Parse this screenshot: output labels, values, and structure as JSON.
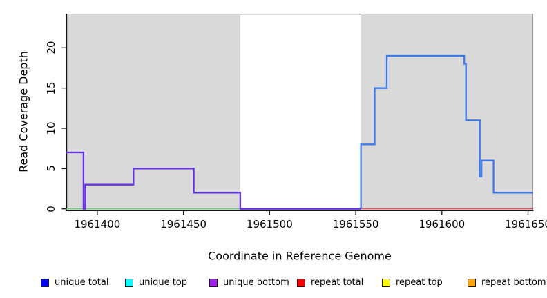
{
  "chart_data": {
    "type": "line",
    "subtype": "step-coverage",
    "title": "",
    "xlabel": "Coordinate in Reference Genome",
    "ylabel": "Read Coverage Depth",
    "xlim": [
      1961382,
      1961653
    ],
    "ylim": [
      0,
      24.2
    ],
    "grid": false,
    "x_ticks": {
      "values": [
        1961400,
        1961450,
        1961500,
        1961550,
        1961600,
        1961650
      ],
      "labels": [
        "1961400",
        "1961450",
        "1961500",
        "1961550",
        "1961600",
        "1961650"
      ]
    },
    "y_ticks": {
      "values": [
        0,
        5,
        10,
        15,
        20
      ],
      "labels": [
        "0",
        "5",
        "10",
        "15",
        "20"
      ]
    },
    "repeat_regions": [
      {
        "start": 1961382,
        "end": 1961483
      },
      {
        "start": 1961553,
        "end": 1961653
      }
    ],
    "region_color": "#d9d9d9",
    "series": [
      {
        "name": "zero-baseline-left-green",
        "color": "#72c17c",
        "width": 1.6,
        "points": [
          [
            1961382,
            0
          ],
          [
            1961483,
            0
          ]
        ]
      },
      {
        "name": "zero-baseline-right-red",
        "color": "#e25568",
        "width": 1.6,
        "points": [
          [
            1961553,
            0
          ],
          [
            1961653,
            0
          ]
        ]
      },
      {
        "name": "unique-coverage-left",
        "color": "#6333df",
        "width": 2.3,
        "points": [
          [
            1961382,
            7
          ],
          [
            1961392,
            7
          ],
          [
            1961392,
            0
          ],
          [
            1961393,
            0
          ],
          [
            1961393,
            3
          ],
          [
            1961421,
            3
          ],
          [
            1961421,
            5
          ],
          [
            1961456,
            5
          ],
          [
            1961456,
            2
          ],
          [
            1961483,
            2
          ],
          [
            1961483,
            0
          ],
          [
            1961553,
            0
          ]
        ]
      },
      {
        "name": "unique-coverage-right",
        "color": "#3e79e9",
        "width": 2.3,
        "points": [
          [
            1961553,
            0
          ],
          [
            1961553,
            8
          ],
          [
            1961561,
            8
          ],
          [
            1961561,
            15
          ],
          [
            1961568,
            15
          ],
          [
            1961568,
            19
          ],
          [
            1961613,
            19
          ],
          [
            1961613,
            18
          ],
          [
            1961614,
            18
          ],
          [
            1961614,
            11
          ],
          [
            1961622,
            11
          ],
          [
            1961622,
            4
          ],
          [
            1961623,
            4
          ],
          [
            1961623,
            6
          ],
          [
            1961630,
            6
          ],
          [
            1961630,
            2
          ],
          [
            1961653,
            2
          ]
        ]
      }
    ],
    "legend_position": "bottom",
    "legend": [
      {
        "label": "unique total",
        "color": "#0000ff"
      },
      {
        "label": "unique top",
        "color": "#00ffff"
      },
      {
        "label": "unique bottom",
        "color": "#a020f0"
      },
      {
        "label": "repeat total",
        "color": "#ff0000"
      },
      {
        "label": "repeat top",
        "color": "#ffff00"
      },
      {
        "label": "repeat bottom",
        "color": "#ffa500"
      }
    ]
  }
}
